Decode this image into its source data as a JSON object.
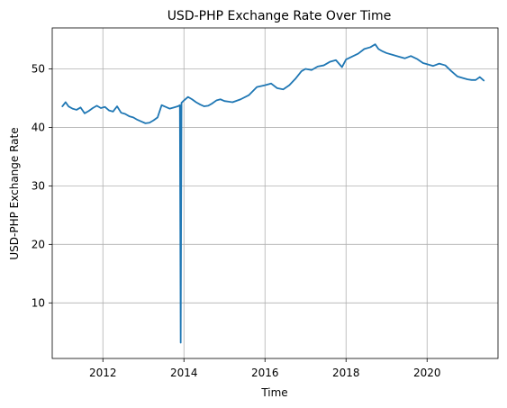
{
  "chart_data": {
    "type": "line",
    "title": "USD-PHP Exchange Rate Over Time",
    "xlabel": "Time",
    "ylabel": "USD-PHP Exchange Rate",
    "xlim": [
      2010.75,
      2021.75
    ],
    "ylim": [
      0.5,
      57
    ],
    "x_ticks": [
      2012,
      2014,
      2016,
      2018,
      2020
    ],
    "x_tick_labels": [
      "2012",
      "2014",
      "2016",
      "2018",
      "2020"
    ],
    "y_ticks": [
      10,
      20,
      30,
      40,
      50
    ],
    "y_tick_labels": [
      "10",
      "20",
      "30",
      "40",
      "50"
    ],
    "grid": true,
    "series": [
      {
        "color": "#1f77b4",
        "x": [
          2011.0,
          2011.08,
          2011.15,
          2011.25,
          2011.35,
          2011.45,
          2011.55,
          2011.65,
          2011.75,
          2011.85,
          2011.95,
          2012.05,
          2012.15,
          2012.25,
          2012.35,
          2012.45,
          2012.55,
          2012.65,
          2012.75,
          2012.85,
          2012.95,
          2013.05,
          2013.15,
          2013.25,
          2013.35,
          2013.45,
          2013.55,
          2013.65,
          2013.75,
          2013.85,
          2013.9,
          2013.92,
          2013.94,
          2014.0,
          2014.1,
          2014.2,
          2014.3,
          2014.4,
          2014.5,
          2014.6,
          2014.7,
          2014.8,
          2014.9,
          2015.0,
          2015.2,
          2015.4,
          2015.6,
          2015.8,
          2016.0,
          2016.15,
          2016.3,
          2016.45,
          2016.6,
          2016.75,
          2016.9,
          2017.0,
          2017.15,
          2017.3,
          2017.45,
          2017.6,
          2017.75,
          2017.9,
          2018.0,
          2018.15,
          2018.3,
          2018.45,
          2018.6,
          2018.72,
          2018.8,
          2018.9,
          2019.0,
          2019.15,
          2019.3,
          2019.45,
          2019.6,
          2019.75,
          2019.9,
          2020.0,
          2020.15,
          2020.3,
          2020.45,
          2020.6,
          2020.75,
          2020.9,
          2021.0,
          2021.1,
          2021.2,
          2021.3,
          2021.4
        ],
        "y": [
          43.6,
          44.3,
          43.6,
          43.2,
          43.0,
          43.4,
          42.4,
          42.8,
          43.3,
          43.7,
          43.3,
          43.5,
          42.9,
          42.7,
          43.6,
          42.5,
          42.3,
          41.9,
          41.7,
          41.3,
          41.0,
          40.7,
          40.8,
          41.2,
          41.7,
          43.8,
          43.5,
          43.2,
          43.4,
          43.6,
          43.8,
          3.2,
          44.2,
          44.6,
          45.2,
          44.8,
          44.3,
          43.9,
          43.6,
          43.7,
          44.1,
          44.6,
          44.8,
          44.5,
          44.3,
          44.8,
          45.5,
          46.9,
          47.2,
          47.5,
          46.7,
          46.5,
          47.2,
          48.3,
          49.6,
          50.0,
          49.8,
          50.4,
          50.6,
          51.2,
          51.5,
          50.3,
          51.6,
          52.1,
          52.6,
          53.4,
          53.7,
          54.2,
          53.4,
          53.0,
          52.7,
          52.4,
          52.1,
          51.8,
          52.2,
          51.7,
          51.0,
          50.8,
          50.5,
          50.9,
          50.6,
          49.6,
          48.7,
          48.4,
          48.2,
          48.1,
          48.1,
          48.6,
          48.0
        ]
      }
    ]
  }
}
